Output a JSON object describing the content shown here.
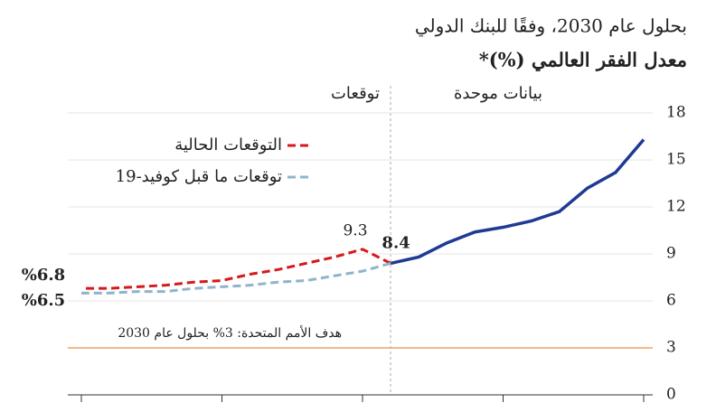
{
  "chart_data": {
    "type": "line",
    "subtitle": "بحلول عام 2030، وفقًا للبنك الدولي",
    "title": "معدل الفقر العالمي (%)*",
    "categories": [
      null,
      null,
      null,
      null,
      null,
      null,
      null,
      null,
      null,
      null,
      null,
      null,
      null,
      null,
      null,
      null,
      null,
      null,
      null,
      null,
      null
    ],
    "x_reversed": true,
    "series": [
      {
        "color": "#1f3a93",
        "dashed": false,
        "values": [
          16.3,
          14.2,
          13.2,
          11.7,
          11.1,
          10.7,
          10.4,
          9.7,
          8.8,
          8.4,
          null,
          null,
          null,
          null,
          null,
          null,
          null,
          null,
          null,
          null,
          null
        ]
      },
      {
        "name": "التوقعات الحالية",
        "color": "#d7191c",
        "dashed": true,
        "values": [
          null,
          null,
          null,
          null,
          null,
          null,
          null,
          null,
          null,
          8.4,
          9.3,
          8.8,
          8.4,
          8.0,
          7.7,
          7.3,
          7.2,
          7.0,
          6.9,
          6.8,
          6.8
        ],
        "value_labels": [
          null,
          null,
          null,
          null,
          null,
          null,
          null,
          null,
          null,
          null,
          null,
          null,
          null,
          null,
          null,
          null,
          null,
          null,
          null,
          null,
          "%6.8"
        ]
      },
      {
        "name": "توقعات ما قبل كوفيد-19",
        "color": "#8fb4cc",
        "dashed": true,
        "values": [
          null,
          null,
          null,
          null,
          null,
          null,
          null,
          null,
          null,
          8.4,
          7.9,
          7.6,
          7.3,
          7.2,
          7.0,
          6.9,
          6.8,
          6.6,
          6.6,
          6.5,
          6.5
        ],
        "value_labels": [
          null,
          null,
          null,
          null,
          null,
          null,
          null,
          null,
          null,
          null,
          null,
          null,
          null,
          null,
          null,
          null,
          null,
          null,
          null,
          null,
          "%6.5"
        ]
      }
    ],
    "ylim": [
      0,
      18
    ],
    "yticks": [
      0,
      3,
      6,
      9,
      12,
      15,
      18
    ],
    "grid": true,
    "regions": [
      "بيانات موحدة",
      "توقعات"
    ],
    "target": {
      "value": 3,
      "label": "هدف الأمم المتحدة: 3% بحلول عام 2030",
      "color": "#f4a261"
    }
  }
}
